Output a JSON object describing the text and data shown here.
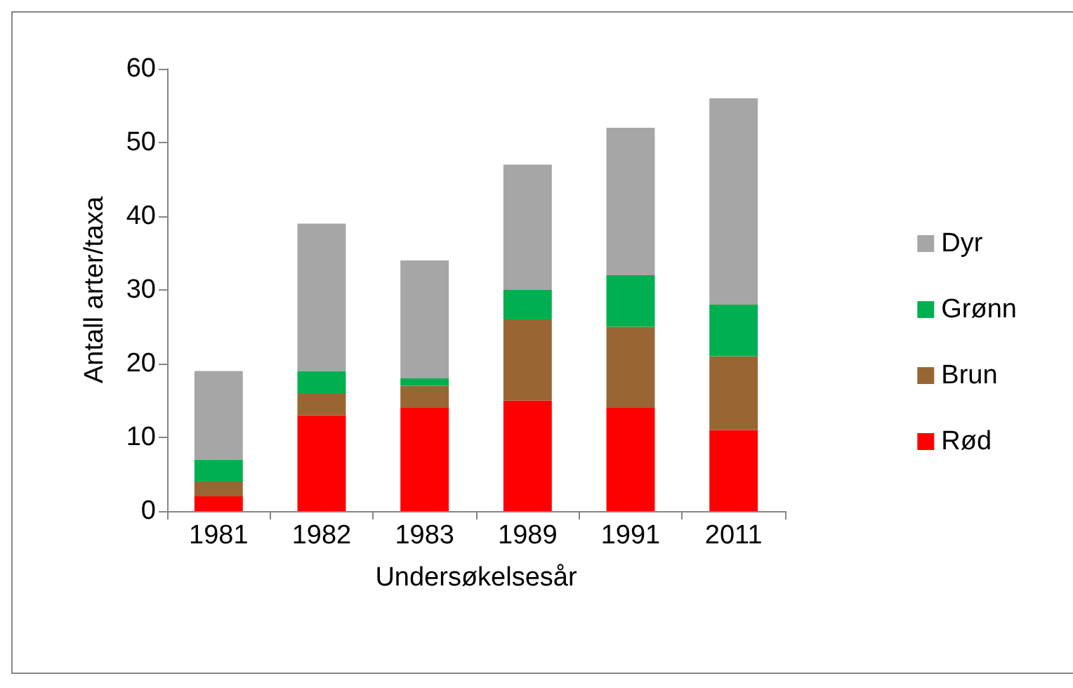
{
  "chart_data": {
    "type": "bar",
    "stacked": true,
    "xlabel": "Undersøkelsesår",
    "ylabel": "Antall arter/taxa",
    "categories": [
      "1981",
      "1982",
      "1983",
      "1989",
      "1991",
      "2011"
    ],
    "series": [
      {
        "name": "Rød",
        "color": "#ff0000",
        "values": [
          2,
          13,
          14,
          15,
          14,
          11
        ]
      },
      {
        "name": "Brun",
        "color": "#996633",
        "values": [
          2,
          3,
          3,
          11,
          11,
          10
        ]
      },
      {
        "name": "Grønn",
        "color": "#00b050",
        "values": [
          3,
          3,
          1,
          4,
          7,
          7
        ]
      },
      {
        "name": "Dyr",
        "color": "#a6a6a6",
        "values": [
          12,
          20,
          16,
          17,
          20,
          28
        ]
      }
    ],
    "ylim": [
      0,
      60
    ],
    "yticks": [
      0,
      10,
      20,
      30,
      40,
      50,
      60
    ],
    "grid": false,
    "legend": "right"
  }
}
